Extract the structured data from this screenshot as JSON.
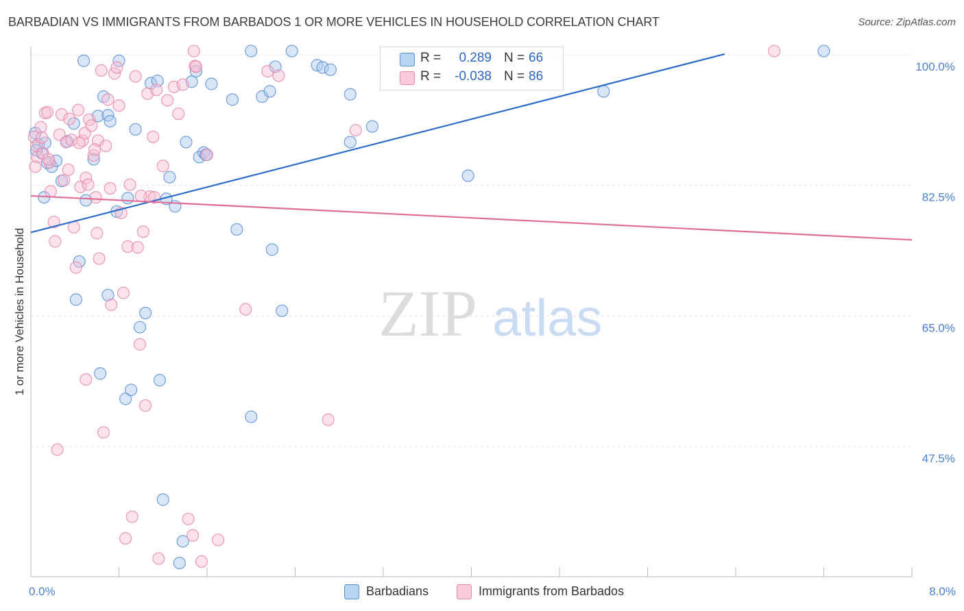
{
  "header": {
    "title": "BARBADIAN VS IMMIGRANTS FROM BARBADOS 1 OR MORE VEHICLES IN HOUSEHOLD CORRELATION CHART",
    "source": "Source: ZipAtlas.com"
  },
  "watermark": {
    "zip": "ZIP",
    "atlas": "atlas"
  },
  "legend": {
    "rows": [
      {
        "r_label": "R =",
        "r_value": "0.289",
        "n_label": "N =",
        "n_value": "66"
      },
      {
        "r_label": "R =",
        "r_value": "-0.038",
        "n_label": "N =",
        "n_value": "86"
      }
    ]
  },
  "bottom_legend": {
    "series1": "Barbadians",
    "series2": "Immigrants from Barbados"
  },
  "chart_data": {
    "type": "scatter",
    "title": "BARBADIAN VS IMMIGRANTS FROM BARBADOS 1 OR MORE VEHICLES IN HOUSEHOLD CORRELATION CHART",
    "xlabel": "",
    "ylabel": "1 or more Vehicles in Household",
    "xlim": [
      0,
      8
    ],
    "ylim": [
      31,
      102
    ],
    "x_tick_labels": [
      "0.0%",
      "8.0%"
    ],
    "y_ticks": [
      100,
      82.5,
      65,
      47.5
    ],
    "y_tick_labels": [
      "100.0%",
      "82.5%",
      "65.0%",
      "47.5%"
    ],
    "grid": true,
    "colors": {
      "barbadians_fill": "#a9c8f0",
      "barbadians_stroke": "#5b8ed8",
      "barbadians_line": "#2a6cc8",
      "immigrants_fill": "#f7bfd2",
      "immigrants_stroke": "#e888aa",
      "immigrants_line": "#e06d97",
      "axis_label": "#4a7fd0"
    },
    "series": [
      {
        "name": "Barbadians",
        "r": 0.289,
        "n": 66,
        "trend": {
          "x": [
            0,
            6.3
          ],
          "y": [
            76.2,
            100.1
          ]
        },
        "points": [
          [
            0.04,
            89.5
          ],
          [
            0.07,
            88.0
          ],
          [
            0.1,
            86.8
          ],
          [
            0.13,
            88.2
          ],
          [
            0.15,
            85.5
          ],
          [
            0.19,
            85.0
          ],
          [
            0.23,
            85.8
          ],
          [
            0.28,
            83.1
          ],
          [
            0.33,
            88.4
          ],
          [
            0.39,
            90.8
          ],
          [
            0.44,
            72.3
          ],
          [
            0.48,
            99.2
          ],
          [
            0.41,
            67.2
          ],
          [
            0.5,
            80.5
          ],
          [
            0.57,
            86.0
          ],
          [
            0.61,
            91.8
          ],
          [
            0.66,
            94.4
          ],
          [
            0.63,
            57.3
          ],
          [
            0.7,
            91.9
          ],
          [
            0.72,
            91.1
          ],
          [
            0.7,
            67.8
          ],
          [
            0.78,
            79.0
          ],
          [
            0.8,
            99.2
          ],
          [
            0.86,
            53.9
          ],
          [
            0.88,
            80.8
          ],
          [
            0.91,
            55.1
          ],
          [
            0.95,
            90.0
          ],
          [
            0.99,
            63.5
          ],
          [
            1.04,
            65.4
          ],
          [
            1.09,
            96.2
          ],
          [
            1.15,
            96.5
          ],
          [
            1.17,
            56.4
          ],
          [
            1.2,
            40.4
          ],
          [
            1.23,
            80.7
          ],
          [
            1.26,
            83.6
          ],
          [
            1.31,
            79.7
          ],
          [
            1.35,
            31.9
          ],
          [
            1.38,
            34.8
          ],
          [
            1.41,
            88.3
          ],
          [
            1.46,
            96.4
          ],
          [
            1.5,
            97.8
          ],
          [
            1.53,
            86.3
          ],
          [
            1.57,
            86.9
          ],
          [
            1.59,
            86.6
          ],
          [
            1.64,
            96.1
          ],
          [
            1.83,
            94.0
          ],
          [
            1.87,
            76.6
          ],
          [
            2.0,
            100.5
          ],
          [
            2.0,
            51.5
          ],
          [
            2.1,
            94.4
          ],
          [
            2.17,
            95.1
          ],
          [
            2.19,
            73.9
          ],
          [
            2.22,
            98.4
          ],
          [
            2.28,
            65.7
          ],
          [
            2.37,
            100.5
          ],
          [
            2.6,
            98.6
          ],
          [
            2.65,
            98.3
          ],
          [
            2.72,
            98.0
          ],
          [
            2.9,
            94.7
          ],
          [
            2.9,
            88.3
          ],
          [
            3.1,
            90.4
          ],
          [
            3.97,
            83.8
          ],
          [
            5.2,
            95.1
          ],
          [
            7.2,
            100.5
          ],
          [
            0.05,
            87.2
          ],
          [
            0.12,
            80.9
          ]
        ]
      },
      {
        "name": "Immigrants from Barbados",
        "r": -0.038,
        "n": 86,
        "trend": {
          "x": [
            0,
            8.0
          ],
          "y": [
            81.1,
            75.2
          ]
        },
        "points": [
          [
            0.03,
            89.0
          ],
          [
            0.05,
            87.8
          ],
          [
            0.06,
            86.3
          ],
          [
            0.09,
            90.3
          ],
          [
            0.11,
            86.8
          ],
          [
            0.13,
            92.2
          ],
          [
            0.15,
            92.3
          ],
          [
            0.17,
            85.6
          ],
          [
            0.18,
            81.7
          ],
          [
            0.21,
            77.6
          ],
          [
            0.22,
            75.0
          ],
          [
            0.24,
            47.1
          ],
          [
            0.26,
            89.3
          ],
          [
            0.28,
            92.0
          ],
          [
            0.3,
            83.2
          ],
          [
            0.32,
            88.3
          ],
          [
            0.35,
            91.4
          ],
          [
            0.37,
            88.6
          ],
          [
            0.39,
            76.9
          ],
          [
            0.41,
            71.5
          ],
          [
            0.43,
            92.6
          ],
          [
            0.45,
            82.3
          ],
          [
            0.47,
            88.5
          ],
          [
            0.49,
            89.5
          ],
          [
            0.5,
            83.5
          ],
          [
            0.5,
            56.5
          ],
          [
            0.52,
            82.6
          ],
          [
            0.53,
            91.3
          ],
          [
            0.55,
            90.5
          ],
          [
            0.57,
            86.5
          ],
          [
            0.59,
            80.9
          ],
          [
            0.61,
            88.5
          ],
          [
            0.6,
            76.1
          ],
          [
            0.62,
            72.7
          ],
          [
            0.64,
            97.9
          ],
          [
            0.66,
            49.4
          ],
          [
            0.68,
            87.8
          ],
          [
            0.7,
            94.0
          ],
          [
            0.72,
            82.1
          ],
          [
            0.73,
            66.5
          ],
          [
            0.76,
            97.5
          ],
          [
            0.78,
            98.3
          ],
          [
            0.8,
            93.2
          ],
          [
            0.82,
            78.8
          ],
          [
            0.84,
            68.1
          ],
          [
            0.86,
            35.2
          ],
          [
            0.88,
            74.3
          ],
          [
            0.9,
            82.6
          ],
          [
            0.92,
            38.1
          ],
          [
            0.95,
            97.1
          ],
          [
            0.97,
            74.2
          ],
          [
            0.99,
            61.2
          ],
          [
            1.02,
            76.3
          ],
          [
            1.04,
            53.0
          ],
          [
            1.06,
            94.8
          ],
          [
            1.08,
            81.0
          ],
          [
            1.11,
            89.0
          ],
          [
            1.14,
            95.3
          ],
          [
            1.16,
            32.5
          ],
          [
            1.2,
            85.1
          ],
          [
            1.24,
            93.9
          ],
          [
            1.3,
            95.7
          ],
          [
            1.34,
            92.1
          ],
          [
            1.38,
            96.0
          ],
          [
            1.43,
            37.8
          ],
          [
            1.47,
            35.6
          ],
          [
            1.49,
            98.5
          ],
          [
            1.5,
            98.4
          ],
          [
            1.55,
            32.1
          ],
          [
            1.6,
            86.6
          ],
          [
            1.7,
            35.0
          ],
          [
            1.95,
            65.9
          ],
          [
            2.15,
            97.8
          ],
          [
            2.25,
            97.2
          ],
          [
            2.7,
            51.1
          ],
          [
            2.95,
            89.9
          ],
          [
            6.75,
            100.5
          ],
          [
            1.48,
            100.5
          ],
          [
            0.04,
            85.0
          ],
          [
            0.1,
            88.9
          ],
          [
            0.16,
            86.0
          ],
          [
            0.34,
            84.6
          ],
          [
            0.44,
            88.2
          ],
          [
            0.58,
            87.3
          ],
          [
            1.0,
            81.1
          ],
          [
            1.12,
            80.9
          ]
        ]
      }
    ]
  }
}
